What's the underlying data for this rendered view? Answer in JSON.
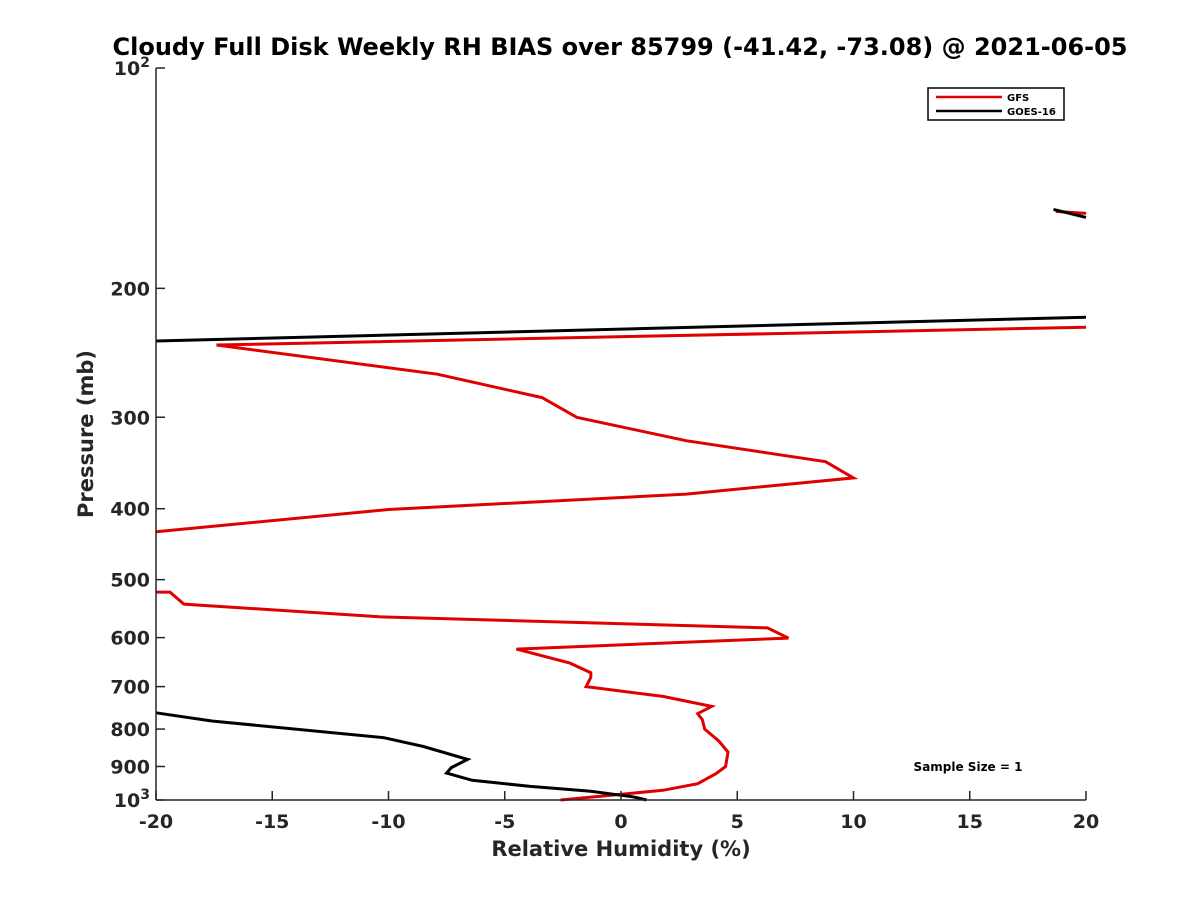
{
  "chart_data": {
    "type": "line",
    "title": "Cloudy Full Disk Weekly RH BIAS over 85799 (-41.42, -73.08) @ 2021-06-05",
    "xlabel": "Relative Humidity (%)",
    "ylabel": "Pressure (mb)",
    "xlim": [
      -20,
      20
    ],
    "ylim": [
      100,
      1000
    ],
    "y_scale": "log",
    "y_reversed": true,
    "x_ticks": [
      {
        "value": -20,
        "label": "-20"
      },
      {
        "value": -15,
        "label": "-15"
      },
      {
        "value": -10,
        "label": "-10"
      },
      {
        "value": -5,
        "label": "-5"
      },
      {
        "value": 0,
        "label": "0"
      },
      {
        "value": 5,
        "label": "5"
      },
      {
        "value": 10,
        "label": "10"
      },
      {
        "value": 15,
        "label": "15"
      },
      {
        "value": 20,
        "label": "20"
      }
    ],
    "y_ticks": [
      {
        "value": 100,
        "base": "10",
        "exp": "2"
      },
      {
        "value": 200,
        "label": "200"
      },
      {
        "value": 300,
        "label": "300"
      },
      {
        "value": 400,
        "label": "400"
      },
      {
        "value": 500,
        "label": "500"
      },
      {
        "value": 600,
        "label": "600"
      },
      {
        "value": 700,
        "label": "700"
      },
      {
        "value": 800,
        "label": "800"
      },
      {
        "value": 900,
        "label": "900"
      },
      {
        "value": 1000,
        "base": "10",
        "exp": "3"
      }
    ],
    "grid": false,
    "legend_position": "top-right",
    "series": [
      {
        "name": "GFS",
        "color": "#e00000",
        "segments": [
          [
            {
              "x": 18.7,
              "p": 157
            },
            {
              "x": 20.0,
              "p": 158
            }
          ],
          [
            {
              "x": 20.0,
              "p": 226
            },
            {
              "x": -17.4,
              "p": 239
            },
            {
              "x": -7.9,
              "p": 262
            },
            {
              "x": -3.4,
              "p": 282
            },
            {
              "x": -1.9,
              "p": 300
            },
            {
              "x": 2.8,
              "p": 323
            },
            {
              "x": 8.8,
              "p": 345
            },
            {
              "x": 10.0,
              "p": 363
            },
            {
              "x": 2.8,
              "p": 382
            },
            {
              "x": -10.0,
              "p": 401
            },
            {
              "x": -20.0,
              "p": 430
            }
          ],
          [
            {
              "x": -20.0,
              "p": 520
            },
            {
              "x": -19.4,
              "p": 520
            },
            {
              "x": -18.8,
              "p": 540
            },
            {
              "x": -10.4,
              "p": 562
            },
            {
              "x": 6.3,
              "p": 582
            },
            {
              "x": 7.2,
              "p": 601
            },
            {
              "x": -4.5,
              "p": 622
            },
            {
              "x": -2.2,
              "p": 650
            },
            {
              "x": -1.3,
              "p": 670
            },
            {
              "x": -1.3,
              "p": 680
            },
            {
              "x": -1.5,
              "p": 700
            },
            {
              "x": 1.8,
              "p": 722
            },
            {
              "x": 3.9,
              "p": 745
            },
            {
              "x": 3.3,
              "p": 762
            },
            {
              "x": 3.5,
              "p": 777
            },
            {
              "x": 3.6,
              "p": 800
            },
            {
              "x": 4.2,
              "p": 830
            },
            {
              "x": 4.6,
              "p": 860
            },
            {
              "x": 4.5,
              "p": 900
            },
            {
              "x": 4.1,
              "p": 920
            },
            {
              "x": 3.3,
              "p": 950
            },
            {
              "x": 1.8,
              "p": 970
            },
            {
              "x": -2.6,
              "p": 1000
            }
          ]
        ]
      },
      {
        "name": "GOES-16",
        "color": "#000000",
        "segments": [
          [
            {
              "x": 18.6,
              "p": 156
            },
            {
              "x": 20.0,
              "p": 160
            }
          ],
          [
            {
              "x": 20.0,
              "p": 219
            },
            {
              "x": -20.0,
              "p": 236
            }
          ],
          [
            {
              "x": -20.0,
              "p": 760
            },
            {
              "x": -17.6,
              "p": 780
            },
            {
              "x": -10.2,
              "p": 822
            },
            {
              "x": -8.5,
              "p": 845
            },
            {
              "x": -6.6,
              "p": 880
            },
            {
              "x": -7.3,
              "p": 903
            },
            {
              "x": -7.5,
              "p": 919
            },
            {
              "x": -6.4,
              "p": 940
            },
            {
              "x": -3.9,
              "p": 958
            },
            {
              "x": -1.3,
              "p": 973
            },
            {
              "x": 0.5,
              "p": 990
            },
            {
              "x": 1.1,
              "p": 1000
            }
          ]
        ]
      }
    ],
    "annotation": "Sample Size = 1"
  }
}
